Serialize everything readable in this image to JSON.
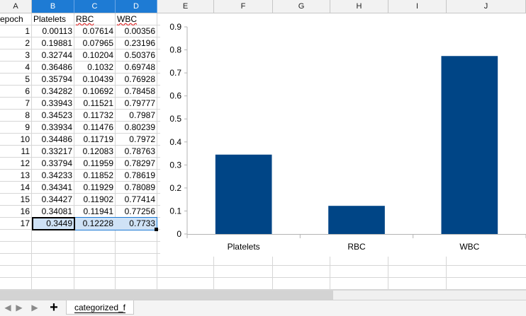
{
  "columns": [
    {
      "letter": "A",
      "selected": false
    },
    {
      "letter": "B",
      "selected": true
    },
    {
      "letter": "C",
      "selected": true
    },
    {
      "letter": "D",
      "selected": true
    },
    {
      "letter": "E",
      "selected": false
    },
    {
      "letter": "F",
      "selected": false
    },
    {
      "letter": "G",
      "selected": false
    },
    {
      "letter": "H",
      "selected": false
    },
    {
      "letter": "I",
      "selected": false
    },
    {
      "letter": "J",
      "selected": false
    }
  ],
  "table": {
    "headers": [
      "epoch",
      "Platelets",
      "RBC",
      "WBC"
    ],
    "rows": [
      [
        "1",
        "0.00113",
        "0.07614",
        "0.00356"
      ],
      [
        "2",
        "0.19881",
        "0.07965",
        "0.23196"
      ],
      [
        "3",
        "0.32744",
        "0.10204",
        "0.50376"
      ],
      [
        "4",
        "0.36486",
        "0.1032",
        "0.69748"
      ],
      [
        "5",
        "0.35794",
        "0.10439",
        "0.76928"
      ],
      [
        "6",
        "0.34282",
        "0.10692",
        "0.78458"
      ],
      [
        "7",
        "0.33943",
        "0.11521",
        "0.79777"
      ],
      [
        "8",
        "0.34523",
        "0.11732",
        "0.7987"
      ],
      [
        "9",
        "0.33934",
        "0.11476",
        "0.80239"
      ],
      [
        "10",
        "0.34486",
        "0.11719",
        "0.7972"
      ],
      [
        "11",
        "0.33217",
        "0.12083",
        "0.78763"
      ],
      [
        "12",
        "0.33794",
        "0.11959",
        "0.78297"
      ],
      [
        "13",
        "0.34233",
        "0.11852",
        "0.78619"
      ],
      [
        "14",
        "0.34341",
        "0.11929",
        "0.78089"
      ],
      [
        "15",
        "0.34427",
        "0.11902",
        "0.77414"
      ],
      [
        "16",
        "0.34081",
        "0.11941",
        "0.77256"
      ],
      [
        "17",
        "0.3449",
        "0.12228",
        "0.7733"
      ]
    ]
  },
  "chart_data": {
    "type": "bar",
    "categories": [
      "Platelets",
      "RBC",
      "WBC"
    ],
    "values": [
      0.3449,
      0.12228,
      0.7733
    ],
    "ylim": [
      0,
      0.9
    ],
    "yticks": [
      "0",
      "0.1",
      "0.2",
      "0.3",
      "0.4",
      "0.5",
      "0.6",
      "0.7",
      "0.8",
      "0.9"
    ],
    "title": "",
    "xlabel": "",
    "ylabel": "",
    "grid": false,
    "legend": "none",
    "bar_color": "#004586"
  },
  "colors": {
    "header_bg": "#f2f2f2",
    "header_selected": "#1e7bd4",
    "selection_fill": "#cfe2f6"
  },
  "tabs": {
    "nav_first_icon": "◀",
    "nav_prev_icon": "▶",
    "nav_next_icon": "▶",
    "add_icon": "+",
    "sheet_name": "categorized_f"
  }
}
